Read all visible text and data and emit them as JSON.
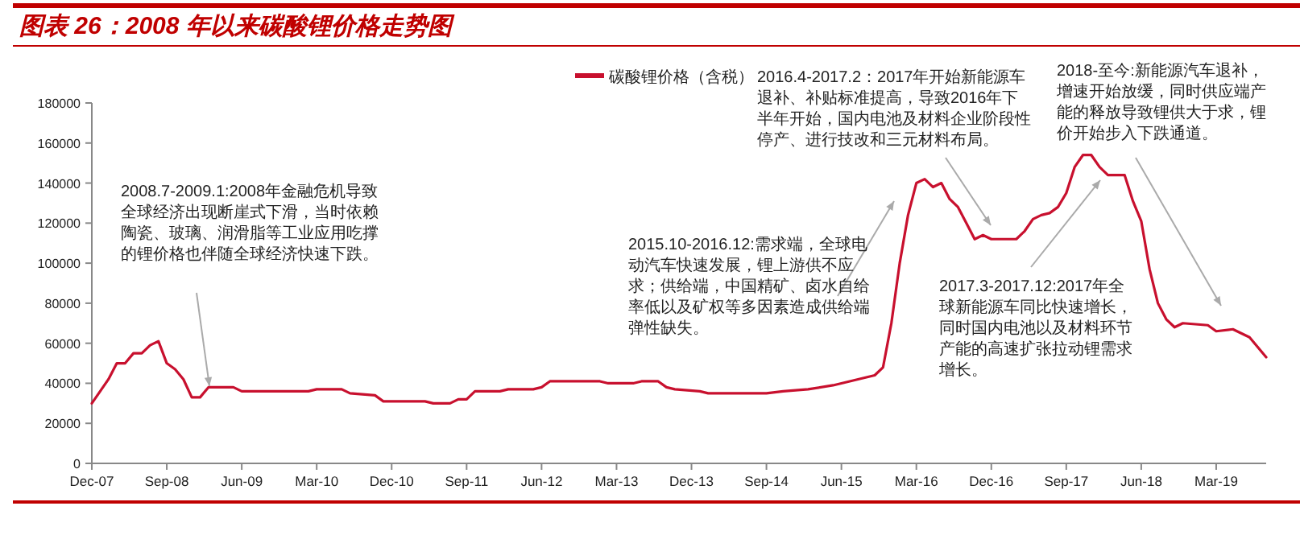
{
  "chart_data": {
    "type": "line",
    "title": "图表 26：2008 年以来碳酸锂价格走势图",
    "series": [
      {
        "name": "碳酸锂价格（含税）",
        "color": "#c8102e",
        "x": [
          "2007-12",
          "2008-01",
          "2008-02",
          "2008-03",
          "2008-04",
          "2008-05",
          "2008-06",
          "2008-07",
          "2008-08",
          "2008-09",
          "2008-10",
          "2008-11",
          "2008-12",
          "2009-01",
          "2009-02",
          "2009-05",
          "2009-06",
          "2010-02",
          "2010-03",
          "2010-06",
          "2010-07",
          "2010-10",
          "2010-11",
          "2011-04",
          "2011-05",
          "2011-07",
          "2011-08",
          "2011-09",
          "2011-10",
          "2012-01",
          "2012-02",
          "2012-05",
          "2012-06",
          "2012-07",
          "2013-01",
          "2013-02",
          "2013-05",
          "2013-06",
          "2013-08",
          "2013-09",
          "2013-10",
          "2014-01",
          "2014-02",
          "2014-08",
          "2014-09",
          "2014-11",
          "2015-02",
          "2015-05",
          "2015-08",
          "2015-10",
          "2015-11",
          "2015-12",
          "2016-01",
          "2016-02",
          "2016-03",
          "2016-04",
          "2016-05",
          "2016-06",
          "2016-07",
          "2016-08",
          "2016-09",
          "2016-10",
          "2016-11",
          "2016-12",
          "2017-03",
          "2017-04",
          "2017-05",
          "2017-06",
          "2017-07",
          "2017-08",
          "2017-09",
          "2017-10",
          "2017-11",
          "2017-12",
          "2018-01",
          "2018-02",
          "2018-04",
          "2018-05",
          "2018-06",
          "2018-07",
          "2018-08",
          "2018-09",
          "2018-10",
          "2018-11",
          "2019-02",
          "2019-03",
          "2019-05",
          "2019-07",
          "2019-09"
        ],
        "values": [
          30000,
          36000,
          42000,
          50000,
          50000,
          55000,
          55000,
          59000,
          61000,
          50000,
          47000,
          42000,
          33000,
          33000,
          38000,
          38000,
          36000,
          36000,
          37000,
          37000,
          35000,
          34000,
          31000,
          31000,
          30000,
          30000,
          32000,
          32000,
          36000,
          36000,
          37000,
          37000,
          38000,
          41000,
          41000,
          40000,
          40000,
          41000,
          41000,
          38000,
          37000,
          36000,
          35000,
          35000,
          35000,
          36000,
          37000,
          39000,
          42000,
          44000,
          48000,
          70000,
          100000,
          124000,
          140000,
          142000,
          138000,
          140000,
          132000,
          128000,
          120000,
          112000,
          114000,
          112000,
          112000,
          116000,
          122000,
          124000,
          125000,
          128000,
          135000,
          148000,
          154000,
          154000,
          148000,
          144000,
          144000,
          131000,
          121000,
          97000,
          80000,
          72000,
          68000,
          70000,
          69000,
          66000,
          67000,
          63000,
          53000
        ]
      }
    ],
    "xlim": [
      "2007-12",
      "2019-09"
    ],
    "xticks": [
      {
        "value": "2007-12",
        "label": "Dec-07"
      },
      {
        "value": "2008-09",
        "label": "Sep-08"
      },
      {
        "value": "2009-06",
        "label": "Jun-09"
      },
      {
        "value": "2010-03",
        "label": "Mar-10"
      },
      {
        "value": "2010-12",
        "label": "Dec-10"
      },
      {
        "value": "2011-09",
        "label": "Sep-11"
      },
      {
        "value": "2012-06",
        "label": "Jun-12"
      },
      {
        "value": "2013-03",
        "label": "Mar-13"
      },
      {
        "value": "2013-12",
        "label": "Dec-13"
      },
      {
        "value": "2014-09",
        "label": "Sep-14"
      },
      {
        "value": "2015-06",
        "label": "Jun-15"
      },
      {
        "value": "2016-03",
        "label": "Mar-16"
      },
      {
        "value": "2016-12",
        "label": "Dec-16"
      },
      {
        "value": "2017-09",
        "label": "Sep-17"
      },
      {
        "value": "2018-06",
        "label": "Jun-18"
      },
      {
        "value": "2019-03",
        "label": "Mar-19"
      }
    ],
    "ylim": [
      0,
      180000
    ],
    "yticks": [
      0,
      20000,
      40000,
      60000,
      80000,
      100000,
      120000,
      140000,
      160000,
      180000
    ],
    "grid": false,
    "legend": "top",
    "marker": "none",
    "line_style": "solid",
    "annotations": [
      "2008.7-2009.1:2008年金融危机导致全球经济出现断崖式下滑，当时依赖陶瓷、玻璃、润滑脂等工业应用吃撑的锂价格也伴随全球经济快速下跌。",
      "2015.10-2016.12:需求端，全球电动汽车快速发展，锂上游供不应求；供给端，中国精矿、卤水自给率低以及矿权等多因素造成供给端弹性缺失。",
      "2016.4-2017.2：2017年开始新能源车退补、补贴标准提高，导致2016年下半年开始，国内电池及材料企业阶段性停产、进行技改和三元材料布局。",
      "2017.3-2017.12:2017年全球新能源车同比快速增长，同时国内电池以及材料环节产能的高速扩张拉动锂需求增长。",
      "2018-至今:新能源汽车退补，增速开始放缓，同时供应端产能的释放导致锂供大于求，锂价开始步入下跌通道。"
    ]
  }
}
